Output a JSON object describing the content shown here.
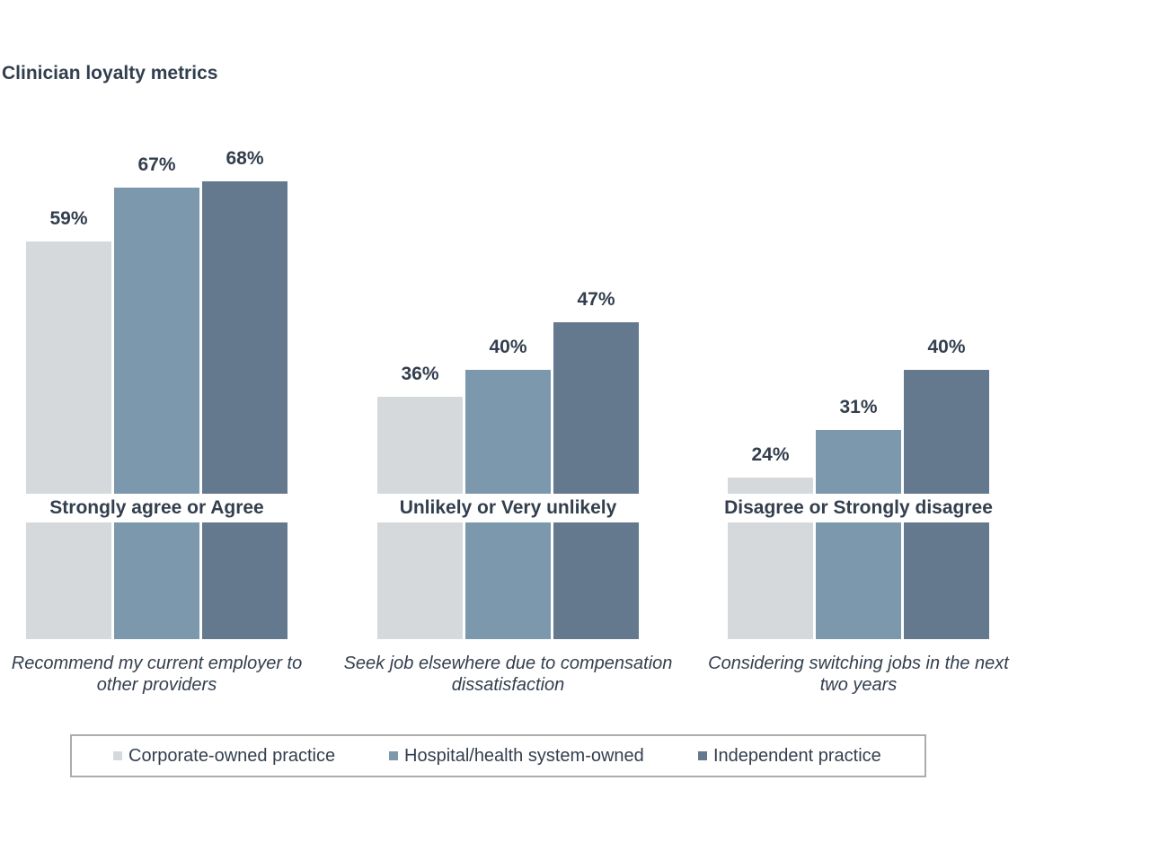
{
  "title": "Clinician loyalty metrics",
  "colors": {
    "series": [
      "#D6D9DB",
      "#7C98AD",
      "#64798E"
    ],
    "text": "#333F4E",
    "legend_border": "#A9ADB0",
    "background": "#FFFFFF"
  },
  "chart_data": {
    "type": "bar",
    "title": "Clinician loyalty metrics",
    "unit": "%",
    "ylim": [
      0,
      100
    ],
    "grid": false,
    "axis_labels_shown": false,
    "legend_position": "bottom",
    "series": [
      {
        "name": "Corporate-owned practice",
        "color": "#D6D9DB",
        "values": [
          59,
          36,
          24
        ]
      },
      {
        "name": "Hospital/health system-owned",
        "color": "#7C98AD",
        "values": [
          67,
          40,
          31
        ]
      },
      {
        "name": "Independent practice",
        "color": "#64798E",
        "values": [
          68,
          47,
          40
        ]
      }
    ],
    "groups": [
      {
        "label": "Strongly agree or Agree",
        "statement": "Recommend my current employer to other providers",
        "statement_lines": [
          "Recommend my current employer to",
          "other providers"
        ],
        "values": [
          59,
          67,
          68
        ],
        "value_labels": [
          "59%",
          "67%",
          "68%"
        ]
      },
      {
        "label": "Unlikely or Very unlikely",
        "statement": "Seek job elsewhere due to compensation dissatisfaction",
        "statement_lines": [
          "Seek job elsewhere due to compensation",
          "dissatisfaction"
        ],
        "values": [
          36,
          40,
          47
        ],
        "value_labels": [
          "36%",
          "40%",
          "47%"
        ]
      },
      {
        "label": "Disagree or Strongly disagree",
        "statement": "Considering switching jobs in the next two years",
        "statement_lines": [
          "Considering switching jobs in the next",
          "two years"
        ],
        "values": [
          24,
          31,
          40
        ],
        "value_labels": [
          "24%",
          "31%",
          "40%"
        ]
      }
    ]
  },
  "legend": {
    "items": [
      {
        "label": "Corporate-owned practice",
        "color": "#D6D9DB"
      },
      {
        "label": "Hospital/health system-owned",
        "color": "#7C98AD"
      },
      {
        "label": "Independent practice",
        "color": "#64798E"
      }
    ]
  }
}
